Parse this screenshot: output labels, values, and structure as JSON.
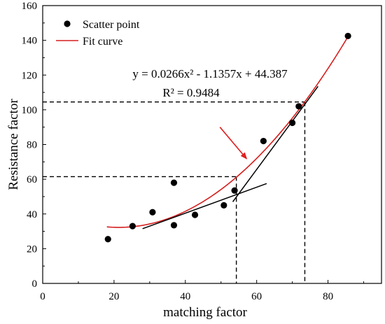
{
  "chart_data": {
    "type": "scatter",
    "xlabel": "matching factor",
    "ylabel": "Resistance factor",
    "xlim": [
      0,
      95
    ],
    "ylim": [
      0,
      160
    ],
    "x_ticks": [
      0,
      20,
      40,
      60,
      80
    ],
    "y_ticks": [
      0,
      20,
      40,
      60,
      80,
      100,
      120,
      140,
      160
    ],
    "legend": {
      "position": "top-left",
      "entries": [
        {
          "label": "Scatter point",
          "marker": "filled-circle",
          "color": "#000000"
        },
        {
          "label": "Fit curve",
          "marker": "line",
          "color": "#d61f1f"
        }
      ]
    },
    "series": [
      {
        "name": "Scatter point",
        "points": [
          [
            18.3,
            25.5
          ],
          [
            25.2,
            33.0
          ],
          [
            30.8,
            41.0
          ],
          [
            36.8,
            58.0
          ],
          [
            36.8,
            33.5
          ],
          [
            42.7,
            39.5
          ],
          [
            50.8,
            45.0
          ],
          [
            53.8,
            53.5
          ],
          [
            61.9,
            82.0
          ],
          [
            70.0,
            92.5
          ],
          [
            71.8,
            102.0
          ],
          [
            85.6,
            142.5
          ]
        ]
      },
      {
        "name": "Fit curve",
        "equation": {
          "a": 0.0266,
          "b": -1.1357,
          "c": 44.387
        },
        "x_range": [
          18,
          85.6
        ]
      }
    ],
    "annotations": {
      "equation_text": "y = 0.0266x² - 1.1357x + 44.387",
      "r2_text": "R² = 0.9484",
      "tangent_lines": [
        {
          "from": [
            28.0,
            31.5
          ],
          "to": [
            62.8,
            57.5
          ]
        },
        {
          "from": [
            53.3,
            47.0
          ],
          "to": [
            77.2,
            113.5
          ]
        }
      ],
      "dashed_guides": [
        {
          "x": 54.3,
          "y": 61.5
        },
        {
          "x": 73.5,
          "y": 104.5
        }
      ],
      "arrow": {
        "from": [
          49.7,
          90.0
        ],
        "to": [
          57.1,
          72.0
        ],
        "color": "#e02020"
      }
    },
    "colors": {
      "curve": "#d61f1f",
      "arrow": "#e02020",
      "points": "#000000",
      "lines": "#000000"
    }
  }
}
